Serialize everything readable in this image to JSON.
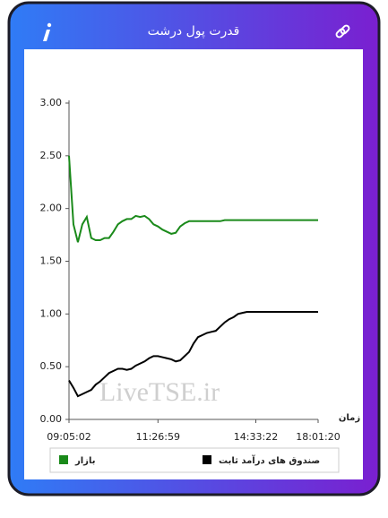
{
  "header": {
    "title": "قدرت پول درشت"
  },
  "chart_data": {
    "type": "line",
    "x_label": "زمان",
    "annotation": "LiveTSE.ir",
    "categories": [
      "09:05:02",
      null,
      null,
      null,
      null,
      null,
      null,
      null,
      null,
      null,
      null,
      null,
      null,
      null,
      null,
      null,
      null,
      null,
      null,
      null,
      "11:26:59",
      null,
      null,
      null,
      null,
      null,
      null,
      null,
      null,
      null,
      null,
      null,
      null,
      null,
      null,
      null,
      null,
      null,
      null,
      null,
      null,
      null,
      "14:33:22",
      null,
      null,
      null,
      null,
      null,
      null,
      null,
      null,
      null,
      null,
      null,
      null,
      null,
      "18:01:20"
    ],
    "series": [
      {
        "name": "بازار",
        "color": "#1a8a1a",
        "values": [
          2.5,
          1.85,
          1.68,
          1.85,
          1.92,
          1.72,
          1.7,
          1.7,
          1.72,
          1.72,
          1.78,
          1.85,
          1.88,
          1.9,
          1.9,
          1.93,
          1.92,
          1.93,
          1.9,
          1.85,
          1.83,
          1.8,
          1.78,
          1.76,
          1.77,
          1.83,
          1.86,
          1.88,
          1.88,
          1.88,
          1.88,
          1.88,
          1.88,
          1.88,
          1.88,
          1.89,
          1.89,
          1.89,
          1.89,
          1.89,
          1.89,
          1.89,
          1.89,
          1.89,
          1.89,
          1.89,
          1.89,
          1.89,
          1.89,
          1.89,
          1.89,
          1.89,
          1.89,
          1.89,
          1.89,
          1.89,
          1.89
        ]
      },
      {
        "name": "صندوق های درآمد ثابت",
        "color": "#000000",
        "values": [
          0.37,
          0.3,
          0.22,
          0.24,
          0.26,
          0.28,
          0.33,
          0.36,
          0.4,
          0.44,
          0.46,
          0.48,
          0.48,
          0.47,
          0.48,
          0.51,
          0.53,
          0.55,
          0.58,
          0.6,
          0.6,
          0.59,
          0.58,
          0.57,
          0.55,
          0.56,
          0.6,
          0.64,
          0.72,
          0.78,
          0.8,
          0.82,
          0.83,
          0.84,
          0.88,
          0.92,
          0.95,
          0.97,
          1.0,
          1.01,
          1.02,
          1.02,
          1.02,
          1.02,
          1.02,
          1.02,
          1.02,
          1.02,
          1.02,
          1.02,
          1.02,
          1.02,
          1.02,
          1.02,
          1.02,
          1.02,
          1.02
        ]
      }
    ],
    "ylim": [
      0,
      3
    ],
    "yticks": [
      {
        "value": 0,
        "label": "0.00"
      },
      {
        "value": 0.5,
        "label": "0.50"
      },
      {
        "value": 1,
        "label": "1.00"
      },
      {
        "value": 1.5,
        "label": "1.50"
      },
      {
        "value": 2,
        "label": "2.00"
      },
      {
        "value": 2.5,
        "label": "2.50"
      },
      {
        "value": 3,
        "label": "3.00"
      }
    ],
    "grid": false
  }
}
